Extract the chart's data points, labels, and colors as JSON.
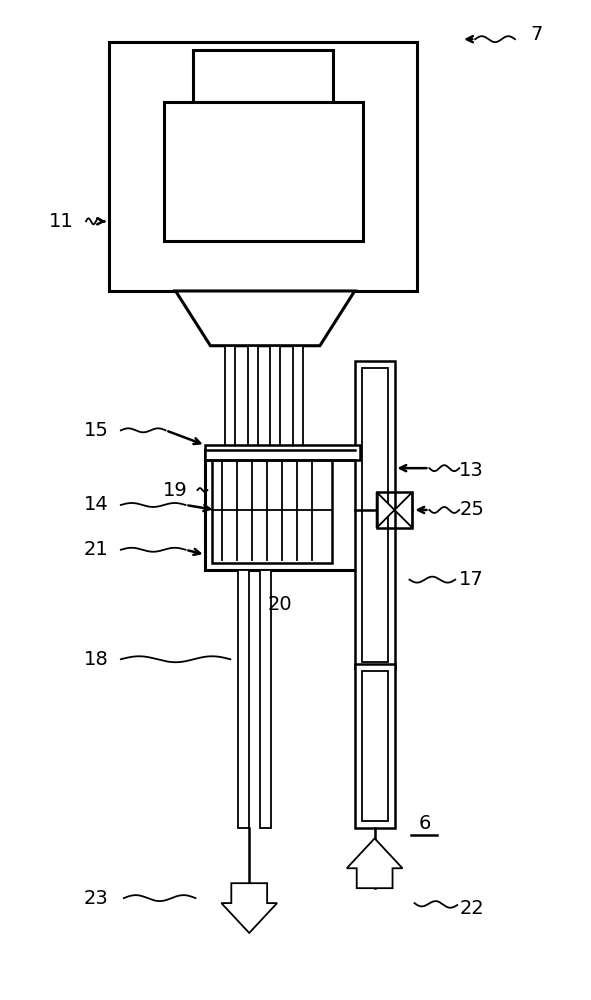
{
  "bg_color": "#ffffff",
  "line_color": "#000000",
  "lw": 2.2,
  "lw_med": 1.8,
  "lw_thin": 1.3,
  "fig_width": 5.91,
  "fig_height": 10.0,
  "dpi": 100
}
